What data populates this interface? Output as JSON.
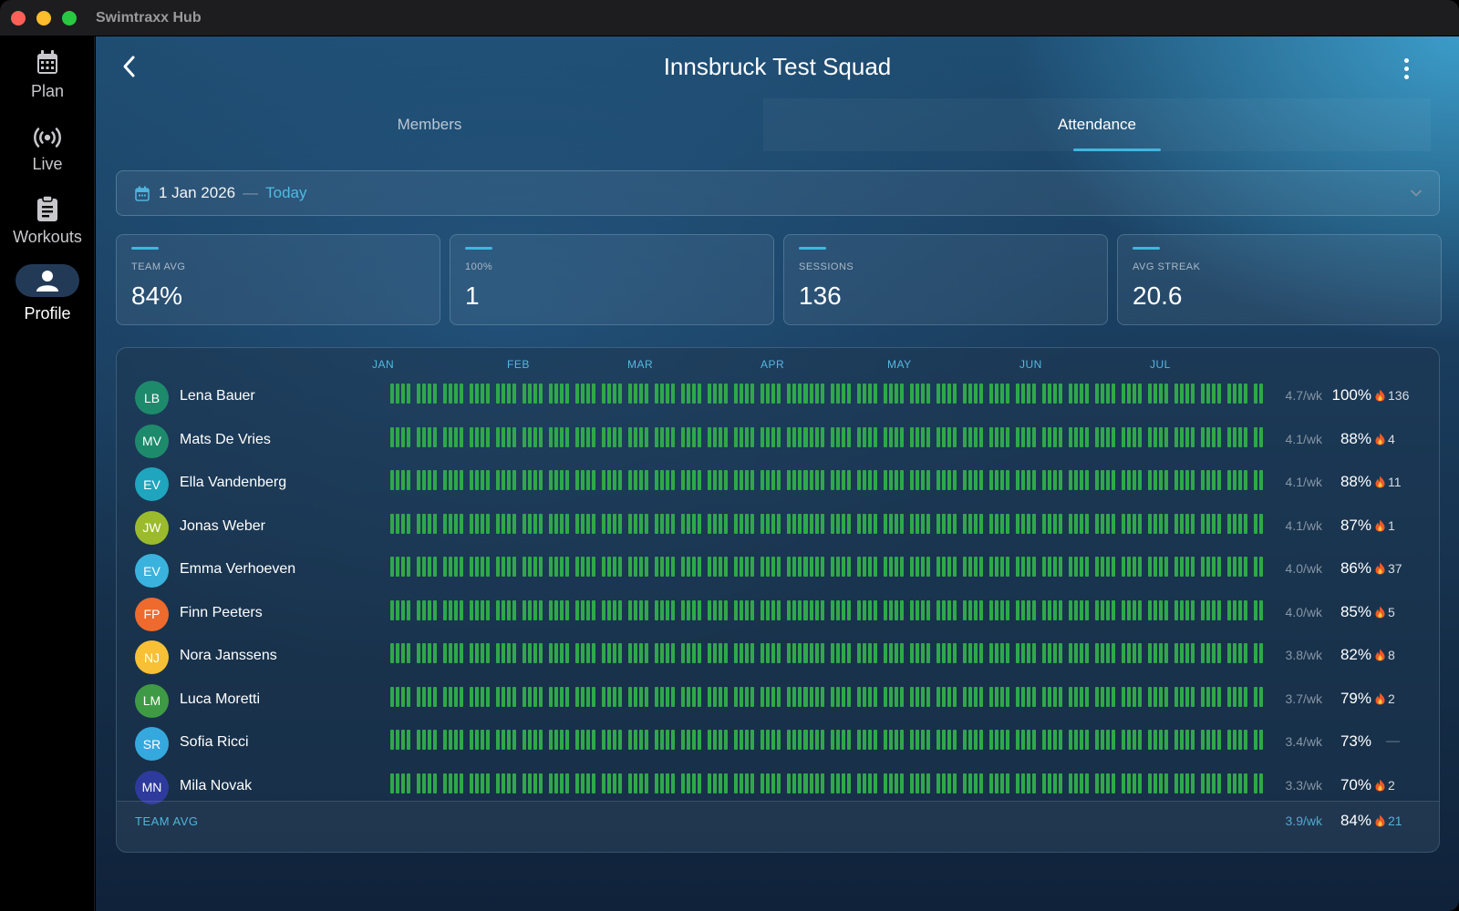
{
  "app": {
    "title": "Swimtraxx Hub"
  },
  "sidebar": {
    "items": [
      {
        "label": "Plan",
        "icon": "calendar-icon"
      },
      {
        "label": "Live",
        "icon": "broadcast-icon"
      },
      {
        "label": "Workouts",
        "icon": "clipboard-icon"
      },
      {
        "label": "Profile",
        "icon": "person-icon",
        "active": true
      }
    ]
  },
  "header": {
    "title": "Innsbruck Test Squad"
  },
  "tabs": [
    {
      "label": "Members",
      "active": false
    },
    {
      "label": "Attendance",
      "active": true
    }
  ],
  "date_range": {
    "start": "1 Jan 2026",
    "separator": "—",
    "end": "Today"
  },
  "stats": [
    {
      "label": "TEAM AVG",
      "value": "84%"
    },
    {
      "label": "100%",
      "value": "1"
    },
    {
      "label": "SESSIONS",
      "value": "136"
    },
    {
      "label": "AVG STREAK",
      "value": "20.6"
    }
  ],
  "months": [
    "JAN",
    "FEB",
    "MAR",
    "APR",
    "MAY",
    "JUN",
    "JUL"
  ],
  "colors": {
    "present": "#2fa84a",
    "late": "#e0801e",
    "absent": "#e23a3a",
    "accent": "#3fb7df"
  },
  "members": [
    {
      "initials": "LB",
      "name": "Lena Bauer",
      "avatar_color": "#1e8a6c",
      "per_week": "4.7/wk",
      "percent": "100%",
      "streak": "136",
      "attendance": ""
    },
    {
      "initials": "MV",
      "name": "Mats De Vries",
      "avatar_color": "#1e8a6c",
      "per_week": "4.1/wk",
      "percent": "88%",
      "streak": "4",
      "attendance": ""
    },
    {
      "initials": "EV",
      "name": "Ella Vandenberg",
      "avatar_color": "#1fa5bd",
      "per_week": "4.1/wk",
      "percent": "88%",
      "streak": "11",
      "attendance": ""
    },
    {
      "initials": "JW",
      "name": "Jonas Weber",
      "avatar_color": "#9bbb2d",
      "per_week": "4.1/wk",
      "percent": "87%",
      "streak": "1",
      "attendance": ""
    },
    {
      "initials": "EV",
      "name": "Emma Verhoeven",
      "avatar_color": "#39b3de",
      "per_week": "4.0/wk",
      "percent": "86%",
      "streak": "37",
      "attendance": ""
    },
    {
      "initials": "FP",
      "name": "Finn Peeters",
      "avatar_color": "#ee6b2d",
      "per_week": "4.0/wk",
      "percent": "85%",
      "streak": "5",
      "attendance": ""
    },
    {
      "initials": "NJ",
      "name": "Nora Janssens",
      "avatar_color": "#f7c035",
      "per_week": "3.8/wk",
      "percent": "82%",
      "streak": "8",
      "attendance": ""
    },
    {
      "initials": "LM",
      "name": "Luca Moretti",
      "avatar_color": "#3f9a45",
      "per_week": "3.7/wk",
      "percent": "79%",
      "streak": "2",
      "attendance": ""
    },
    {
      "initials": "SR",
      "name": "Sofia Ricci",
      "avatar_color": "#35a9dd",
      "per_week": "3.4/wk",
      "percent": "73%",
      "streak": "—",
      "attendance": ""
    },
    {
      "initials": "MN",
      "name": "Mila Novak",
      "avatar_color": "#2e3a9c",
      "per_week": "3.3/wk",
      "percent": "70%",
      "streak": "2",
      "attendance": ""
    }
  ],
  "footer": {
    "label": "TEAM AVG",
    "per_week": "3.9/wk",
    "percent": "84%",
    "streak": "21"
  }
}
